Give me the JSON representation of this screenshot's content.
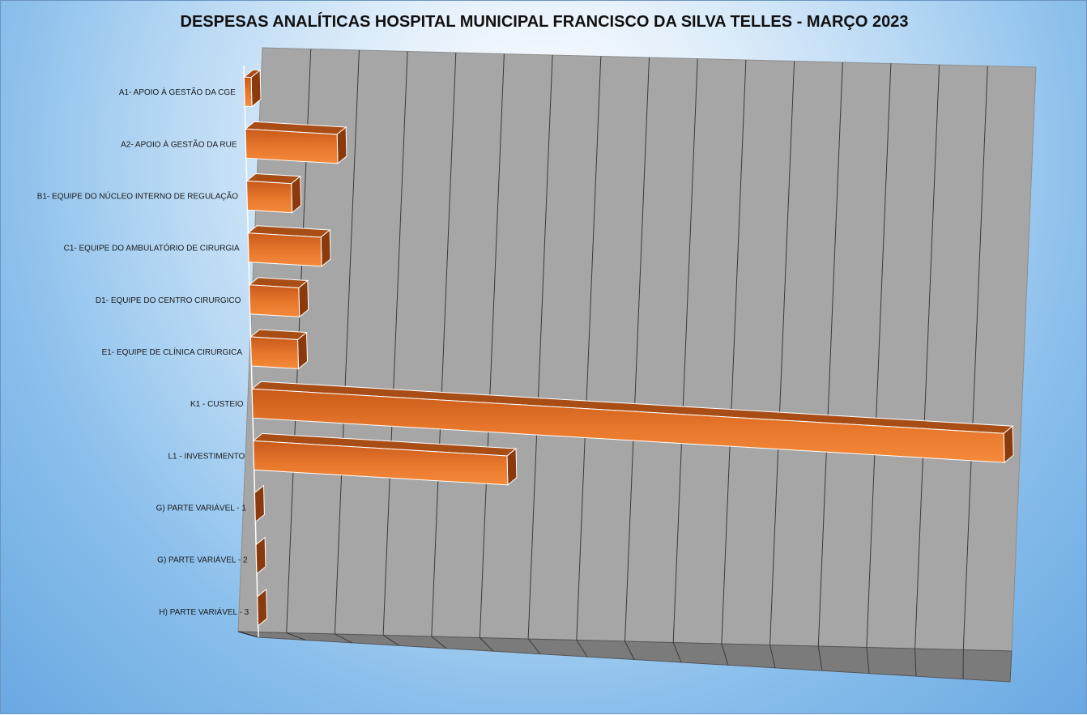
{
  "chart_data": {
    "type": "bar",
    "orientation": "horizontal",
    "style": "3d",
    "title": "DESPESAS ANALÍTICAS HOSPITAL MUNICIPAL FRANCISCO DA SILVA TELLES - MARÇO 2023",
    "xlabel": "",
    "ylabel": "",
    "categories": [
      "A1- APOIO À GESTÃO DA CGE",
      "A2- APOIO À GESTÃO DA RUE",
      "B1- EQUIPE DO NÚCLEO INTERNO DE REGULAÇÃO",
      "C1- EQUIPE DO AMBULATÓRIO DE CIRURGIA",
      "D1- EQUIPE DO CENTRO CIRURGICO",
      "E1- EQUIPE DE CLÍNICA CIRURGICA",
      "K1 - CUSTEIO",
      "L1 - INVESTIMENTO",
      "G) PARTE VARIÁVEL - 1",
      "G) PARTE VARIÁVEL - 2",
      "H) PARTE VARIÁVEL - 3"
    ],
    "values": [
      1.5,
      19.5,
      9.5,
      15.5,
      10.5,
      10.0,
      160.0,
      54.0,
      0,
      0,
      0
    ],
    "xlim": [
      0,
      160
    ],
    "gridline_step": 10,
    "tick_labels_shown": false,
    "grid": true,
    "legend": "none",
    "colors": {
      "bar_front": "#e87a30",
      "bar_top": "#a84d16",
      "bar_side": "#8a3a0c",
      "back_wall": "#a6a6a6",
      "floor": "#7b7b7b",
      "gridline": "#3a3a3a",
      "background": "#8cc0ec"
    }
  }
}
